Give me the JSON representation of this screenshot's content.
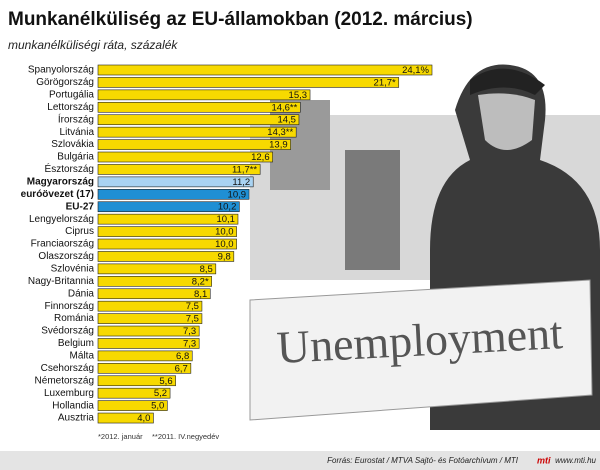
{
  "chart_data": {
    "type": "bar",
    "orientation": "horizontal",
    "title": "Munkanélküliség az EU-államokban (2012. március)",
    "subtitle": "munkanélküliségi ráta, százalék",
    "categories": [
      "Spanyolország",
      "Görögország",
      "Portugália",
      "Lettország",
      "Írország",
      "Litvánia",
      "Szlovákia",
      "Bulgária",
      "Észtország",
      "Magyarország",
      "euróövezet (17)",
      "EU-27",
      "Lengyelország",
      "Ciprus",
      "Franciaország",
      "Olaszország",
      "Szlovénia",
      "Nagy-Britannia",
      "Dánia",
      "Finnország",
      "Románia",
      "Svédország",
      "Belgium",
      "Málta",
      "Csehország",
      "Németország",
      "Luxemburg",
      "Hollandia",
      "Ausztria"
    ],
    "values": [
      24.1,
      21.7,
      15.3,
      14.6,
      14.5,
      14.3,
      13.9,
      12.6,
      11.7,
      11.2,
      10.9,
      10.2,
      10.1,
      10.0,
      10.0,
      9.8,
      8.5,
      8.2,
      8.1,
      7.5,
      7.5,
      7.3,
      7.3,
      6.8,
      6.7,
      5.6,
      5.2,
      5.0,
      4.0
    ],
    "value_labels": [
      "24,1%",
      "21,7*",
      "15,3",
      "14,6**",
      "14,5",
      "14,3**",
      "13,9",
      "12,6",
      "11,7**",
      "11,2",
      "10,9",
      "10,2",
      "10,1",
      "10,0",
      "10,0",
      "9,8",
      "8,5",
      "8,2*",
      "8,1",
      "7,5",
      "7,5",
      "7,3",
      "7,3",
      "6,8",
      "6,7",
      "5,6",
      "5,2",
      "5,0",
      "4,0"
    ],
    "colors": [
      "#f7d900",
      "#f7d900",
      "#f7d900",
      "#f7d900",
      "#f7d900",
      "#f7d900",
      "#f7d900",
      "#f7d900",
      "#f7d900",
      "#a9d3f2",
      "#1f8fd4",
      "#1f8fd4",
      "#f7d900",
      "#f7d900",
      "#f7d900",
      "#f7d900",
      "#f7d900",
      "#f7d900",
      "#f7d900",
      "#f7d900",
      "#f7d900",
      "#f7d900",
      "#f7d900",
      "#f7d900",
      "#f7d900",
      "#f7d900",
      "#f7d900",
      "#f7d900",
      "#f7d900"
    ],
    "highlighted": [
      "Magyarország",
      "euróövezet (17)",
      "EU-27"
    ],
    "footnotes": [
      "*2012. január",
      "**2011. IV.negyedév"
    ],
    "source": "Forrás: Eurostat / MTVA Sajtó- és Fotóarchívum / MTI",
    "logo": "mti",
    "website": "www.mti.hu",
    "photo_sign_text": "Unemployment"
  }
}
